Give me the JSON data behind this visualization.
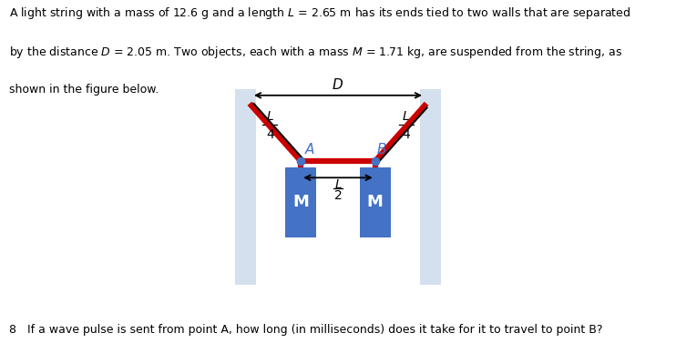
{
  "bg_color": "#ffffff",
  "wall_color": "#b8cce4",
  "wall_alpha": 0.6,
  "string_color": "#cc0000",
  "string_lw": 3.5,
  "black_lw": 1.5,
  "mass_color": "#4472c4",
  "mass_text_color": "#ffffff",
  "point_color": "#4472c4",
  "fig_width": 7.42,
  "fig_height": 3.77,
  "dpi": 100,
  "text_line1": "A light string with a mass of 12.6 g and a length $L$ = 2.65 m has its ends tied to two walls that are separated",
  "text_line2": "by the distance $D$ = 2.05 m. Two objects, each with a mass $M$ = 1.71 kg, are suspended from the string, as",
  "text_line3": "shown in the figure below.",
  "text_bottom": "8   If a wave pulse is sent from point A, how long (in milliseconds) does it take for it to travel to point B?",
  "font_size": 9.0
}
